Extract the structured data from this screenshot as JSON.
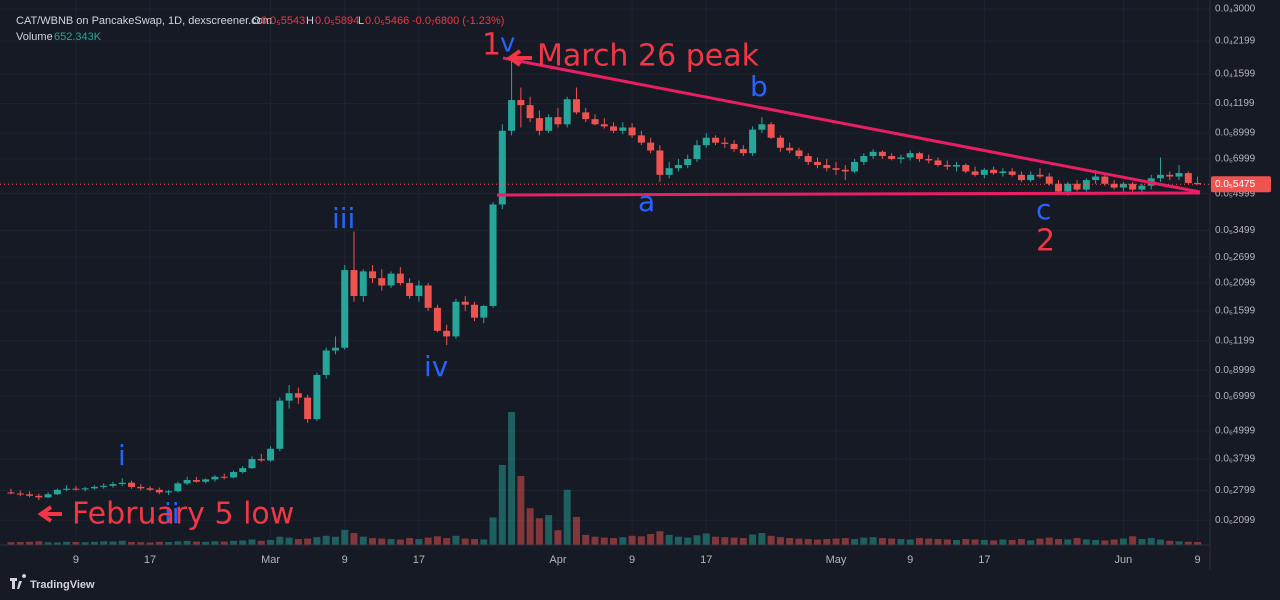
{
  "header": {
    "symbol": "CAT/WBNB on PancakeSwap, 1D, dexscreener.com",
    "open_label": "O",
    "open": "0.0₅5543",
    "high_label": "H",
    "high": "0.0₅5894",
    "low_label": "L",
    "low": "0.0₅5466",
    "change": "-0.0₇6800 (-1.23%)",
    "volume_label": "Volume",
    "volume": "652.343K"
  },
  "footer": {
    "brand": "TradingView"
  },
  "chart_data": {
    "type": "candlestick",
    "log": true,
    "grid": true,
    "up_color": "#26a69a",
    "down_color": "#ef5350",
    "ylim": [
      1.65e-07,
      3.03e-05
    ],
    "yticks": [
      {
        "value": 3e-05,
        "label": "0.0₄3000"
      },
      {
        "value": 2.199e-05,
        "label": "0.0₄2199"
      },
      {
        "value": 1.599e-05,
        "label": "0.0₄1599"
      },
      {
        "value": 1.199e-05,
        "label": "0.0₄1199"
      },
      {
        "value": 8.999e-06,
        "label": "0.0₅8999"
      },
      {
        "value": 6.999e-06,
        "label": "0.0₅6999"
      },
      {
        "value": 4.999e-06,
        "label": "0.0₅4999"
      },
      {
        "value": 3.499e-06,
        "label": "0.0₅3499"
      },
      {
        "value": 2.699e-06,
        "label": "0.0₅2699"
      },
      {
        "value": 2.099e-06,
        "label": "0.0₅2099"
      },
      {
        "value": 1.599e-06,
        "label": "0.0₅1599"
      },
      {
        "value": 1.199e-06,
        "label": "0.0₅1199"
      },
      {
        "value": 8.999e-07,
        "label": "0.0₆8999"
      },
      {
        "value": 6.999e-07,
        "label": "0.0₆6999"
      },
      {
        "value": 4.999e-07,
        "label": "0.0₆4999"
      },
      {
        "value": 3.799e-07,
        "label": "0.0₆3799"
      },
      {
        "value": 2.799e-07,
        "label": "0.0₆2799"
      },
      {
        "value": 2.099e-07,
        "label": "0.0₆2099"
      }
    ],
    "last_price_label": "0.0₅5475",
    "categories": [
      null,
      null,
      null,
      null,
      null,
      null,
      null,
      "9",
      null,
      null,
      null,
      null,
      null,
      null,
      null,
      "17",
      null,
      null,
      null,
      null,
      null,
      null,
      null,
      null,
      null,
      null,
      null,
      null,
      "Mar",
      null,
      null,
      null,
      null,
      null,
      null,
      null,
      "9",
      null,
      null,
      null,
      null,
      null,
      null,
      null,
      "17",
      null,
      null,
      null,
      null,
      null,
      null,
      null,
      null,
      null,
      null,
      null,
      null,
      null,
      null,
      "Apr",
      null,
      null,
      null,
      null,
      null,
      null,
      null,
      "9",
      null,
      null,
      null,
      null,
      null,
      null,
      null,
      "17",
      null,
      null,
      null,
      null,
      null,
      null,
      null,
      null,
      null,
      null,
      null,
      null,
      null,
      "May",
      null,
      null,
      null,
      null,
      null,
      null,
      null,
      "9",
      null,
      null,
      null,
      null,
      null,
      null,
      null,
      "17",
      null,
      null,
      null,
      null,
      null,
      null,
      null,
      null,
      null,
      null,
      null,
      null,
      null,
      null,
      "Jun",
      null,
      null,
      null,
      null,
      null,
      null,
      null,
      "9"
    ],
    "ohlc": [
      [
        2.75e-07,
        2.85e-07,
        2.7e-07,
        2.72e-07
      ],
      [
        2.72e-07,
        2.8e-07,
        2.65e-07,
        2.7e-07
      ],
      [
        2.7e-07,
        2.78e-07,
        2.62e-07,
        2.66e-07
      ],
      [
        2.66e-07,
        2.72e-07,
        2.55e-07,
        2.62e-07
      ],
      [
        2.62e-07,
        2.75e-07,
        2.6e-07,
        2.7e-07
      ],
      [
        2.7e-07,
        2.85e-07,
        2.68e-07,
        2.82e-07
      ],
      [
        2.82e-07,
        2.95e-07,
        2.78e-07,
        2.85e-07
      ],
      [
        2.85e-07,
        2.92e-07,
        2.8e-07,
        2.83e-07
      ],
      [
        2.83e-07,
        2.9e-07,
        2.78e-07,
        2.86e-07
      ],
      [
        2.86e-07,
        2.95e-07,
        2.82e-07,
        2.9e-07
      ],
      [
        2.9e-07,
        3e-07,
        2.85e-07,
        2.93e-07
      ],
      [
        2.93e-07,
        3.05e-07,
        2.88e-07,
        2.98e-07
      ],
      [
        2.98e-07,
        3.15e-07,
        2.92e-07,
        3.02e-07
      ],
      [
        3.02e-07,
        3.08e-07,
        2.85e-07,
        2.9e-07
      ],
      [
        2.9e-07,
        2.98e-07,
        2.8e-07,
        2.86e-07
      ],
      [
        2.86e-07,
        2.92e-07,
        2.78e-07,
        2.82e-07
      ],
      [
        2.82e-07,
        2.88e-07,
        2.7e-07,
        2.75e-07
      ],
      [
        2.75e-07,
        2.82e-07,
        2.68e-07,
        2.78e-07
      ],
      [
        2.78e-07,
        3.05e-07,
        2.75e-07,
        3e-07
      ],
      [
        3e-07,
        3.2e-07,
        2.95e-07,
        3.1e-07
      ],
      [
        3.1e-07,
        3.2e-07,
        3.02e-07,
        3.05e-07
      ],
      [
        3.05e-07,
        3.15e-07,
        3e-07,
        3.12e-07
      ],
      [
        3.12e-07,
        3.25e-07,
        3.05e-07,
        3.2e-07
      ],
      [
        3.2e-07,
        3.3e-07,
        3.12e-07,
        3.18e-07
      ],
      [
        3.18e-07,
        3.4e-07,
        3.15e-07,
        3.35e-07
      ],
      [
        3.35e-07,
        3.55e-07,
        3.3e-07,
        3.48e-07
      ],
      [
        3.48e-07,
        3.9e-07,
        3.45e-07,
        3.8e-07
      ],
      [
        3.8e-07,
        4e-07,
        3.7e-07,
        3.75e-07
      ],
      [
        3.75e-07,
        4.3e-07,
        3.7e-07,
        4.2e-07
      ],
      [
        4.2e-07,
        6.9e-07,
        4.1e-07,
        6.7e-07
      ],
      [
        6.7e-07,
        7.8e-07,
        6.2e-07,
        7.2e-07
      ],
      [
        7.2e-07,
        7.6e-07,
        6.5e-07,
        6.9e-07
      ],
      [
        6.9e-07,
        7.1e-07,
        5.4e-07,
        5.6e-07
      ],
      [
        5.6e-07,
        8.8e-07,
        5.5e-07,
        8.6e-07
      ],
      [
        8.6e-07,
        1.12e-06,
        8.3e-07,
        1.09e-06
      ],
      [
        1.09e-06,
        1.25e-06,
        1.05e-06,
        1.12e-06
      ],
      [
        1.12e-06,
        2.5e-06,
        1.1e-06,
        2.38e-06
      ],
      [
        2.38e-06,
        3.46e-06,
        1.75e-06,
        1.85e-06
      ],
      [
        1.85e-06,
        2.4e-06,
        1.75e-06,
        2.35e-06
      ],
      [
        2.35e-06,
        2.5e-06,
        2.1e-06,
        2.2e-06
      ],
      [
        2.2e-06,
        2.4e-06,
        1.95e-06,
        2.05e-06
      ],
      [
        2.05e-06,
        2.35e-06,
        2e-06,
        2.3e-06
      ],
      [
        2.3e-06,
        2.45e-06,
        2.05e-06,
        2.1e-06
      ],
      [
        2.1e-06,
        2.2e-06,
        1.8e-06,
        1.85e-06
      ],
      [
        1.85e-06,
        2.15e-06,
        1.75e-06,
        2.05e-06
      ],
      [
        2.05e-06,
        2.1e-06,
        1.6e-06,
        1.65e-06
      ],
      [
        1.65e-06,
        1.7e-06,
        1.3e-06,
        1.32e-06
      ],
      [
        1.32e-06,
        1.4e-06,
        1.15e-06,
        1.25e-06
      ],
      [
        1.25e-06,
        1.8e-06,
        1.22e-06,
        1.75e-06
      ],
      [
        1.75e-06,
        1.85e-06,
        1.6e-06,
        1.7e-06
      ],
      [
        1.7e-06,
        1.75e-06,
        1.45e-06,
        1.5e-06
      ],
      [
        1.5e-06,
        1.7e-06,
        1.42e-06,
        1.68e-06
      ],
      [
        1.68e-06,
        4.6e-06,
        1.65e-06,
        4.5e-06
      ],
      [
        4.5e-06,
        9.8e-06,
        4.3e-06,
        9.2e-06
      ],
      [
        9.2e-06,
        1.86e-05,
        8.8e-06,
        1.24e-05
      ],
      [
        1.24e-05,
        1.4e-05,
        9.5e-06,
        1.18e-05
      ],
      [
        1.18e-05,
        1.28e-05,
        1e-05,
        1.04e-05
      ],
      [
        1.04e-05,
        1.12e-05,
        8.8e-06,
        9.2e-06
      ],
      [
        9.2e-06,
        1.08e-05,
        9e-06,
        1.05e-05
      ],
      [
        1.05e-05,
        1.15e-05,
        9.5e-06,
        9.8e-06
      ],
      [
        9.8e-06,
        1.28e-05,
        9.5e-06,
        1.25e-05
      ],
      [
        1.25e-05,
        1.4e-05,
        1.08e-05,
        1.1e-05
      ],
      [
        1.1e-05,
        1.15e-05,
        1e-05,
        1.03e-05
      ],
      [
        1.03e-05,
        1.08e-05,
        9.7e-06,
        9.8e-06
      ],
      [
        9.8e-06,
        1.04e-05,
        9.4e-06,
        9.6e-06
      ],
      [
        9.6e-06,
        1e-05,
        9e-06,
        9.2e-06
      ],
      [
        9.2e-06,
        1e-05,
        8.9e-06,
        9.5e-06
      ],
      [
        9.5e-06,
        9.9e-06,
        8.6e-06,
        8.8e-06
      ],
      [
        8.8e-06,
        9.2e-06,
        8e-06,
        8.2e-06
      ],
      [
        8.2e-06,
        8.6e-06,
        7.4e-06,
        7.6e-06
      ],
      [
        7.6e-06,
        8e-06,
        5.6e-06,
        6e-06
      ],
      [
        6e-06,
        6.8e-06,
        5.8e-06,
        6.4e-06
      ],
      [
        6.4e-06,
        7e-06,
        6.2e-06,
        6.6e-06
      ],
      [
        6.6e-06,
        7.3e-06,
        6.4e-06,
        7e-06
      ],
      [
        7e-06,
        8.4e-06,
        6.8e-06,
        8e-06
      ],
      [
        8e-06,
        9e-06,
        7.8e-06,
        8.6e-06
      ],
      [
        8.6e-06,
        8.8e-06,
        8e-06,
        8.2e-06
      ],
      [
        8.2e-06,
        8.6e-06,
        7.8e-06,
        8.1e-06
      ],
      [
        8.1e-06,
        8.4e-06,
        7.5e-06,
        7.7e-06
      ],
      [
        7.7e-06,
        8e-06,
        7.2e-06,
        7.4e-06
      ],
      [
        7.4e-06,
        9.6e-06,
        7.2e-06,
        9.3e-06
      ],
      [
        9.3e-06,
        1.05e-05,
        9e-06,
        9.8e-06
      ],
      [
        9.8e-06,
        1e-05,
        8.5e-06,
        8.6e-06
      ],
      [
        8.6e-06,
        8.8e-06,
        7.5e-06,
        7.8e-06
      ],
      [
        7.8e-06,
        8.2e-06,
        7.4e-06,
        7.6e-06
      ],
      [
        7.6e-06,
        7.8e-06,
        7e-06,
        7.2e-06
      ],
      [
        7.2e-06,
        7.4e-06,
        6.6e-06,
        6.8e-06
      ],
      [
        6.8e-06,
        7.1e-06,
        6.4e-06,
        6.6e-06
      ],
      [
        6.6e-06,
        7e-06,
        6.2e-06,
        6.4e-06
      ],
      [
        6.4e-06,
        6.8e-06,
        6e-06,
        6.3e-06
      ],
      [
        6.3e-06,
        6.6e-06,
        5.7e-06,
        6.2e-06
      ],
      [
        6.2e-06,
        7e-06,
        6.1e-06,
        6.8e-06
      ],
      [
        6.8e-06,
        7.4e-06,
        6.6e-06,
        7.2e-06
      ],
      [
        7.2e-06,
        7.7e-06,
        7e-06,
        7.5e-06
      ],
      [
        7.5e-06,
        7.6e-06,
        7e-06,
        7.2e-06
      ],
      [
        7.2e-06,
        7.4e-06,
        6.9e-06,
        7e-06
      ],
      [
        7e-06,
        7.3e-06,
        6.7e-06,
        7.1e-06
      ],
      [
        7.1e-06,
        7.6e-06,
        6.9e-06,
        7.4e-06
      ],
      [
        7.4e-06,
        7.5e-06,
        6.8e-06,
        7e-06
      ],
      [
        7e-06,
        7.3e-06,
        6.7e-06,
        6.9e-06
      ],
      [
        6.9e-06,
        7.1e-06,
        6.5e-06,
        6.6e-06
      ],
      [
        6.6e-06,
        6.9e-06,
        6.3e-06,
        6.5e-06
      ],
      [
        6.5e-06,
        6.8e-06,
        6.2e-06,
        6.6e-06
      ],
      [
        6.6e-06,
        6.7e-06,
        6.1e-06,
        6.2e-06
      ],
      [
        6.2e-06,
        6.5e-06,
        5.9e-06,
        6e-06
      ],
      [
        6e-06,
        6.4e-06,
        5.8e-06,
        6.3e-06
      ],
      [
        6.3e-06,
        6.5e-06,
        6e-06,
        6.1e-06
      ],
      [
        6.1e-06,
        6.4e-06,
        5.9e-06,
        6.2e-06
      ],
      [
        6.2e-06,
        6.4e-06,
        5.9e-06,
        6e-06
      ],
      [
        6e-06,
        6.2e-06,
        5.6e-06,
        5.7e-06
      ],
      [
        5.7e-06,
        6.2e-06,
        5.6e-06,
        6e-06
      ],
      [
        6e-06,
        6.4e-06,
        5.8e-06,
        5.9e-06
      ],
      [
        5.9e-06,
        6.1e-06,
        5.4e-06,
        5.5e-06
      ],
      [
        5.5e-06,
        5.7e-06,
        5e-06,
        5.1e-06
      ],
      [
        5.1e-06,
        5.6e-06,
        4.9e-06,
        5.5e-06
      ],
      [
        5.5e-06,
        5.7e-06,
        5.1e-06,
        5.2e-06
      ],
      [
        5.2e-06,
        5.8e-06,
        5.1e-06,
        5.7e-06
      ],
      [
        5.7e-06,
        6.3e-06,
        5.5e-06,
        5.9e-06
      ],
      [
        5.9e-06,
        6.1e-06,
        5.4e-06,
        5.5e-06
      ],
      [
        5.5e-06,
        5.7e-06,
        5.2e-06,
        5.3e-06
      ],
      [
        5.3e-06,
        5.6e-06,
        5.1e-06,
        5.5e-06
      ],
      [
        5.5e-06,
        5.6e-06,
        5.1e-06,
        5.2e-06
      ],
      [
        5.2e-06,
        5.5e-06,
        5e-06,
        5.4e-06
      ],
      [
        5.4e-06,
        6e-06,
        5.2e-06,
        5.8e-06
      ],
      [
        5.8e-06,
        7.1e-06,
        5.6e-06,
        6e-06
      ],
      [
        6e-06,
        6.2e-06,
        5.7e-06,
        5.9e-06
      ],
      [
        5.9e-06,
        6.6e-06,
        5.7e-06,
        6.1e-06
      ],
      [
        6.1e-06,
        6.2e-06,
        5.5e-06,
        5.543e-06
      ],
      [
        5.543e-06,
        5.894e-06,
        5.466e-06,
        5.475e-06
      ]
    ],
    "volume": [
      600,
      650,
      700,
      800,
      600,
      550,
      700,
      650,
      600,
      700,
      800,
      750,
      900,
      650,
      600,
      550,
      700,
      650,
      800,
      900,
      750,
      700,
      800,
      750,
      900,
      1000,
      1200,
      900,
      1100,
      1800,
      1600,
      1300,
      1400,
      1700,
      2000,
      1800,
      3300,
      2600,
      1800,
      1500,
      1400,
      1300,
      1200,
      1500,
      1300,
      1600,
      1900,
      1500,
      2000,
      1400,
      1300,
      1200,
      6000,
      17400,
      28900,
      15000,
      8000,
      5800,
      6500,
      3200,
      12000,
      6100,
      2200,
      1800,
      1600,
      1500,
      1700,
      2000,
      1900,
      2400,
      3000,
      2200,
      1800,
      1600,
      2100,
      2500,
      1800,
      1700,
      1600,
      1500,
      2300,
      2600,
      2000,
      1700,
      1500,
      1400,
      1300,
      1200,
      1300,
      1400,
      1500,
      1300,
      1600,
      1700,
      1500,
      1400,
      1300,
      1200,
      1500,
      1400,
      1300,
      1200,
      1100,
      1300,
      1200,
      1100,
      1000,
      1200,
      1100,
      1300,
      1000,
      1400,
      1600,
      1300,
      1200,
      1500,
      1200,
      1100,
      1000,
      1200,
      1400,
      1900,
      1300,
      1500,
      1200,
      900,
      800,
      700,
      652.343
    ],
    "annotations": [
      "1",
      "v",
      "March 26 peak",
      "b",
      "a",
      "c",
      "2",
      "iii",
      "iv",
      "i",
      "ii",
      "February 5 low"
    ]
  }
}
